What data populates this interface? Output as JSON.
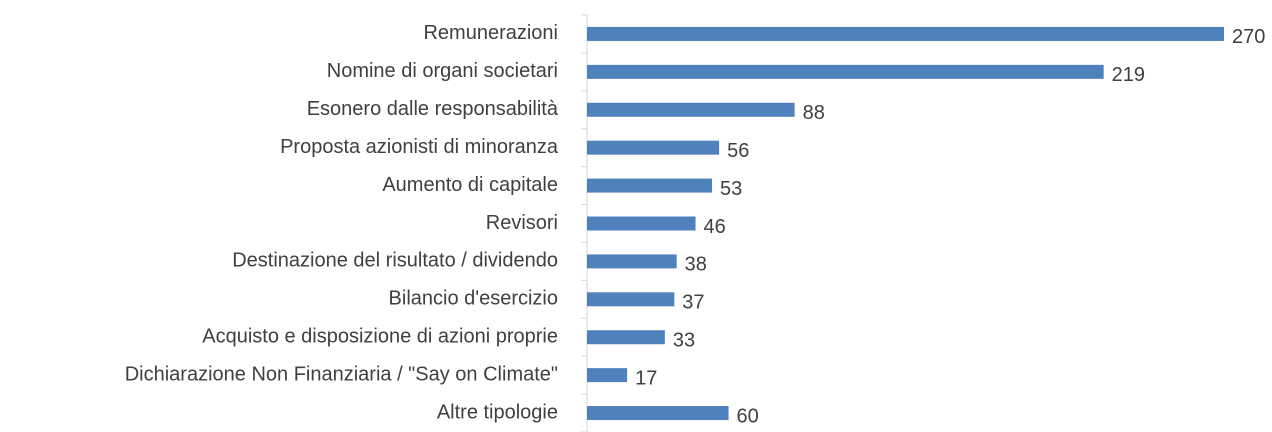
{
  "chart_data": {
    "type": "bar",
    "orientation": "horizontal",
    "categories": [
      "Remunerazioni",
      "Nomine di organi societari",
      "Esonero dalle responsabilità",
      "Proposta azionisti di minoranza",
      "Aumento di capitale",
      "Revisori",
      "Destinazione del risultato / dividendo",
      "Bilancio d'esercizio",
      "Acquisto e disposizione di azioni proprie",
      "Dichiarazione Non Finanziaria / \"Say on Climate\"",
      "Altre tipologie"
    ],
    "values": [
      270,
      219,
      88,
      56,
      53,
      46,
      38,
      37,
      33,
      17,
      60
    ],
    "color": "#4f81bd"
  }
}
